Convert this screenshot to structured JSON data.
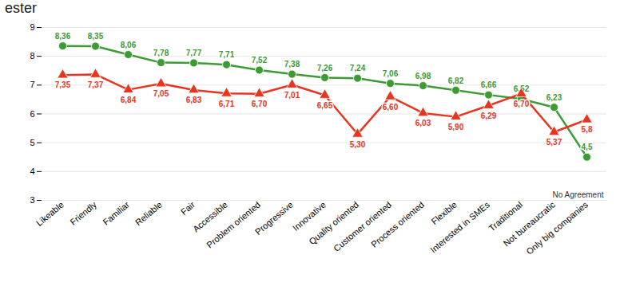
{
  "chart_data": {
    "type": "line",
    "categories": [
      "Likeable",
      "Friendly",
      "Familiar",
      "Reliable",
      "Fair",
      "Accessible",
      "Problem oriented",
      "Progressive",
      "Innovative",
      "Quality oriented",
      "Customer oriented",
      "Process oriented",
      "Flexible",
      "Interested in SMEs",
      "Traditional",
      "Not bureaucratic",
      "Only big companies"
    ],
    "series": [
      {
        "color": "#3d9a35",
        "marker": "circle",
        "line_style": "solid",
        "values": [
          8.36,
          8.35,
          8.06,
          7.78,
          7.77,
          7.71,
          7.52,
          7.38,
          7.26,
          7.24,
          7.06,
          6.98,
          6.82,
          6.66,
          6.52,
          6.23,
          4.5
        ],
        "value_labels": [
          "8,36",
          "8,35",
          "8,06",
          "7,78",
          "7,77",
          "7,71",
          "7,52",
          "7,38",
          "7,26",
          "7,24",
          "7,06",
          "6,98",
          "6,82",
          "6,66",
          "6,52",
          "6,23",
          "4,5"
        ]
      },
      {
        "color": "#e8351f",
        "marker": "triangle",
        "line_style": "solid",
        "values": [
          7.35,
          7.37,
          6.84,
          7.05,
          6.83,
          6.71,
          6.7,
          7.01,
          6.65,
          5.3,
          6.6,
          6.03,
          5.9,
          6.29,
          6.7,
          5.37,
          5.8
        ],
        "value_labels": [
          "7,35",
          "7,37",
          "6,84",
          "7,05",
          "6,83",
          "6,71",
          "6,70",
          "7,01",
          "6,65",
          "5,30",
          "6,60",
          "6,03",
          "5,90",
          "6,29",
          "6,70",
          "5,37",
          "5,8"
        ]
      }
    ],
    "ylim": [
      3,
      9
    ],
    "yticks": [
      3,
      4,
      5,
      6,
      7,
      8,
      9
    ],
    "grid": true,
    "data_labels": true,
    "annotations": [
      "ester",
      "No Agreement"
    ]
  }
}
